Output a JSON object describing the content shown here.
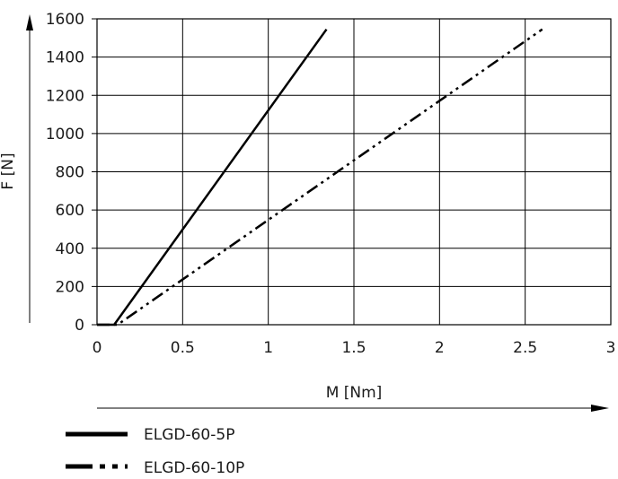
{
  "chart_data": {
    "type": "line",
    "xlabel": "M [Nm]",
    "ylabel": "F [N]",
    "xlim": [
      0,
      3
    ],
    "ylim": [
      0,
      1600
    ],
    "x_ticks": [
      "0",
      "0.5",
      "1",
      "1.5",
      "2",
      "2.5",
      "3"
    ],
    "y_ticks": [
      "0",
      "200",
      "400",
      "600",
      "800",
      "1000",
      "1200",
      "1400",
      "1600"
    ],
    "grid": true,
    "legend_placement": "bottom-left",
    "series": [
      {
        "name": "ELGD-60-5P",
        "style": "solid",
        "color": "#000000",
        "points": [
          [
            0,
            0
          ],
          [
            0.1,
            0
          ],
          [
            1.34,
            1545
          ]
        ]
      },
      {
        "name": "ELGD-60-10P",
        "style": "dash-dot-dot",
        "color": "#000000",
        "points": [
          [
            0,
            0
          ],
          [
            0.12,
            0
          ],
          [
            2.6,
            1545
          ]
        ]
      }
    ]
  }
}
